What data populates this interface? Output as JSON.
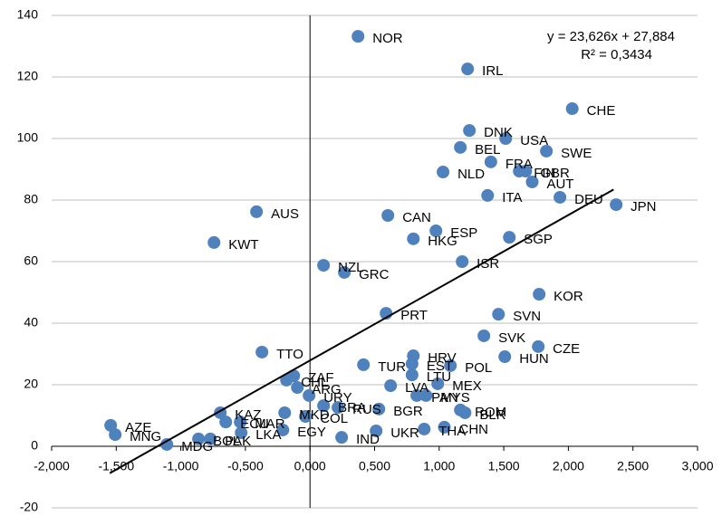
{
  "chart_data": {
    "type": "scatter",
    "labels": [
      "NOR",
      "IRL",
      "CHE",
      "DNK",
      "USA",
      "BEL",
      "SWE",
      "FRA",
      "FIN",
      "GBR",
      "NLD",
      "AUT",
      "ITA",
      "DEU",
      "JPN",
      "AUS",
      "CAN",
      "ESP",
      "HKG",
      "SGP",
      "KWT",
      "NZL",
      "GRC",
      "ISR",
      "KOR",
      "PRT",
      "SVN",
      "SVK",
      "TTO",
      "CZE",
      "HUN",
      "HRV",
      "TUR",
      "EST",
      "POL",
      "LTU",
      "ZAF",
      "CHL",
      "ARG",
      "LVA",
      "MEX",
      "URY",
      "MYS",
      "PAN",
      "BRA",
      "RUS",
      "BGR",
      "ROM",
      "BLR",
      "KAZ",
      "MKD",
      "COL",
      "CHN",
      "THA",
      "UKR",
      "ECU",
      "MAR",
      "AZE",
      "MNG",
      "EGY",
      "LKA",
      "PAK",
      "BOL",
      "IND",
      "MDG"
    ],
    "x": [
      0.372,
      1.22,
      2.03,
      1.234,
      1.515,
      1.164,
      1.83,
      1.4,
      1.62,
      1.67,
      1.03,
      1.72,
      1.375,
      1.935,
      2.37,
      -0.414,
      0.603,
      0.975,
      0.8,
      1.543,
      -0.743,
      0.105,
      0.266,
      1.178,
      1.774,
      0.589,
      1.459,
      1.346,
      -0.372,
      1.767,
      1.508,
      0.8,
      0.414,
      0.79,
      1.087,
      0.79,
      -0.126,
      -0.182,
      -0.098,
      0.624,
      0.989,
      -0.007,
      0.898,
      0.827,
      0.105,
      0.217,
      0.533,
      1.164,
      1.2,
      -0.694,
      -0.196,
      -0.035,
      1.04,
      0.884,
      0.512,
      -0.652,
      -0.54,
      -1.543,
      -1.508,
      -0.21,
      -0.533,
      -0.771,
      -0.863,
      0.245,
      -1.108
    ],
    "values": [
      133.2,
      122.6,
      109.7,
      102.6,
      100,
      97.1,
      95.9,
      92.4,
      89.4,
      89.4,
      89.1,
      85.9,
      81.5,
      80.9,
      78.5,
      76.2,
      75,
      70,
      67.4,
      67.9,
      66.2,
      58.8,
      56.5,
      60,
      49.4,
      43.2,
      42.9,
      35.9,
      30.6,
      32.4,
      29.1,
      29.4,
      26.5,
      26.8,
      26.2,
      23.2,
      22.9,
      21.5,
      19.1,
      19.7,
      20.3,
      16.5,
      16.5,
      16.5,
      13.2,
      12.6,
      12.1,
      11.8,
      10.9,
      10.9,
      10.9,
      9.7,
      6.2,
      5.6,
      5,
      7.9,
      7.9,
      6.8,
      3.8,
      5.3,
      4.4,
      2.4,
      2.4,
      2.9,
      0.6
    ],
    "color": "#4f81bd",
    "xlim": [
      -2,
      3
    ],
    "xticks": [
      {
        "value": -2,
        "label": "-2,000"
      },
      {
        "value": -1.5,
        "label": "-1,500"
      },
      {
        "value": -1,
        "label": "-1,000"
      },
      {
        "value": -0.5,
        "label": "-0,500"
      },
      {
        "value": 0,
        "label": "0,000"
      },
      {
        "value": 0.5,
        "label": "0,500"
      },
      {
        "value": 1,
        "label": "1,000"
      },
      {
        "value": 1.5,
        "label": "1,500"
      },
      {
        "value": 2,
        "label": "2,000"
      },
      {
        "value": 2.5,
        "label": "2,500"
      },
      {
        "value": 3,
        "label": "3,000"
      }
    ],
    "ylim": [
      -20,
      140
    ],
    "yticks": [
      -20,
      0,
      20,
      40,
      60,
      80,
      100,
      120,
      140
    ],
    "grid": true,
    "trendline": {
      "slope": 23.626,
      "intercept": 27.884,
      "x_range": [
        -1.55,
        2.35
      ]
    },
    "equation": "y = 23,626x + 27,884",
    "r_squared": "R² = 0,3434"
  }
}
